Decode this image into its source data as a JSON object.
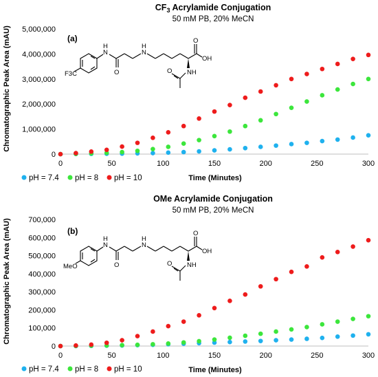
{
  "chart_data": [
    {
      "type": "scatter",
      "title": "CF3 Acrylamide Conjugation",
      "title_main": "CF",
      "title_sub": "3",
      "title_rest": " Acrylamide Conjugation",
      "subtitle": "50 mM PB, 20% MeCN",
      "panel_label": "(a)",
      "xlabel": "Time (Minutes)",
      "ylabel": "Chromatographic Peak Area (mAU)",
      "xlim": [
        0,
        300
      ],
      "ylim": [
        0,
        5000000
      ],
      "xticks": [
        0,
        50,
        100,
        150,
        200,
        250,
        300
      ],
      "yticks": [
        0,
        1000000,
        2000000,
        3000000,
        4000000,
        5000000
      ],
      "xtick_labels": [
        "0",
        "50",
        "100",
        "150",
        "200",
        "250",
        "300"
      ],
      "ytick_labels": [
        "0",
        "1,000,000",
        "2,000,000",
        "3,000,000",
        "4,000,000",
        "5,000,000"
      ],
      "grid": false,
      "legend_position": "bottom-left",
      "molecule_labels": {
        "nh_amide": "N",
        "h_amide": "H",
        "nh_amine": "N",
        "h_amine": "H",
        "o_amide": "O",
        "o_acid": "O",
        "oh_acid": "OH",
        "nh_acetyl": "NH",
        "o_acetyl": "O",
        "substituent": "F3C"
      },
      "x": [
        0,
        15,
        30,
        45,
        60,
        75,
        90,
        105,
        120,
        135,
        150,
        165,
        180,
        195,
        210,
        225,
        240,
        255,
        270,
        285,
        300
      ],
      "series": [
        {
          "name": "pH = 7.4",
          "color": "#1FB1EE",
          "values": [
            0,
            5000,
            10000,
            15000,
            20000,
            30000,
            40000,
            60000,
            80000,
            110000,
            150000,
            190000,
            240000,
            290000,
            340000,
            400000,
            450000,
            520000,
            580000,
            660000,
            750000
          ]
        },
        {
          "name": "pH = 8",
          "color": "#3CE63C",
          "values": [
            0,
            10000,
            30000,
            50000,
            80000,
            130000,
            200000,
            290000,
            420000,
            560000,
            720000,
            900000,
            1120000,
            1350000,
            1600000,
            1850000,
            2100000,
            2350000,
            2580000,
            2800000,
            3000000
          ]
        },
        {
          "name": "pH = 10",
          "color": "#EE1C1C",
          "values": [
            0,
            40000,
            100000,
            170000,
            300000,
            450000,
            650000,
            870000,
            1120000,
            1420000,
            1700000,
            1960000,
            2250000,
            2500000,
            2750000,
            3000000,
            3200000,
            3400000,
            3600000,
            3800000,
            3960000
          ]
        }
      ]
    },
    {
      "type": "scatter",
      "title": "OMe Acrylamide Conjugation",
      "title_main": "OMe Acrylamide Conjugation",
      "title_sub": "",
      "title_rest": "",
      "subtitle": "50 mM PB, 20% MeCN",
      "panel_label": "(b)",
      "xlabel": "Time (Minutes)",
      "ylabel": "Chromatographic Peak Area (mAU)",
      "xlim": [
        0,
        300
      ],
      "ylim": [
        0,
        700000
      ],
      "xticks": [
        0,
        50,
        100,
        150,
        200,
        250,
        300
      ],
      "yticks": [
        0,
        100000,
        200000,
        300000,
        400000,
        500000,
        600000,
        700000
      ],
      "xtick_labels": [
        "0",
        "50",
        "100",
        "150",
        "200",
        "250",
        "300"
      ],
      "ytick_labels": [
        "0",
        "100,000",
        "200,000",
        "300,000",
        "400,000",
        "500,000",
        "600,000",
        "700,000"
      ],
      "grid": false,
      "legend_position": "bottom-left",
      "molecule_labels": {
        "nh_amide": "N",
        "h_amide": "H",
        "nh_amine": "N",
        "h_amine": "H",
        "o_amide": "O",
        "o_acid": "O",
        "oh_acid": "OH",
        "nh_acetyl": "NH",
        "o_acetyl": "O",
        "substituent": "MeO"
      },
      "x": [
        0,
        15,
        30,
        45,
        60,
        75,
        90,
        105,
        120,
        135,
        150,
        165,
        180,
        195,
        210,
        225,
        240,
        255,
        270,
        285,
        300
      ],
      "series": [
        {
          "name": "pH = 7.4",
          "color": "#1FB1EE",
          "values": [
            0,
            0,
            1000,
            2000,
            3000,
            5000,
            7000,
            10000,
            13000,
            16000,
            19000,
            22000,
            25000,
            28000,
            32000,
            36000,
            40000,
            45000,
            52000,
            58000,
            65000
          ]
        },
        {
          "name": "pH = 8",
          "color": "#3CE63C",
          "values": [
            0,
            1000,
            2000,
            3000,
            5000,
            7000,
            10000,
            14000,
            20000,
            27000,
            36000,
            46000,
            57000,
            68000,
            80000,
            92000,
            105000,
            120000,
            135000,
            150000,
            165000
          ]
        },
        {
          "name": "pH = 10",
          "color": "#EE1C1C",
          "values": [
            0,
            3000,
            8000,
            18000,
            32000,
            55000,
            80000,
            110000,
            135000,
            170000,
            210000,
            250000,
            285000,
            330000,
            370000,
            410000,
            440000,
            490000,
            520000,
            550000,
            585000
          ]
        }
      ]
    }
  ]
}
